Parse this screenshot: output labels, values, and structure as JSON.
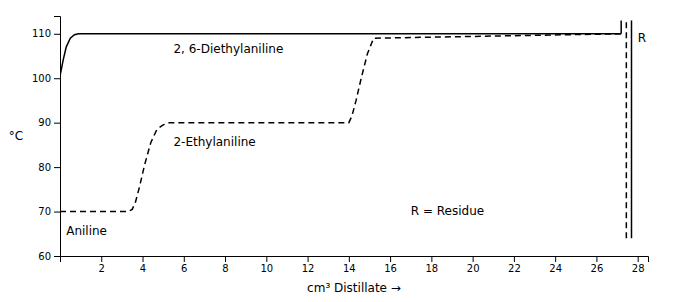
{
  "chart_data": {
    "type": "line",
    "xlabel": "cm³ Distillate →",
    "ylabel": "°C",
    "xlim": [
      0,
      28.5
    ],
    "ylim": [
      60,
      114
    ],
    "xticks": [
      2,
      4,
      6,
      8,
      10,
      12,
      14,
      16,
      18,
      20,
      22,
      24,
      26,
      28
    ],
    "yticks": [
      60,
      70,
      80,
      90,
      100,
      110
    ],
    "grid": false,
    "series": [
      {
        "x": [
          0.0,
          0.15,
          0.3,
          0.5,
          0.7,
          0.9,
          1.1,
          27.2
        ],
        "values": [
          100.5,
          104,
          107,
          109,
          109.8,
          110,
          110,
          110
        ],
        "color": "#000000",
        "line_style": "solid"
      },
      {
        "x": [
          0.0,
          3.3,
          3.5,
          3.65,
          3.85,
          4.1,
          4.4,
          4.7,
          5.0,
          5.3,
          14.0,
          14.15,
          14.35,
          14.6,
          14.9,
          15.2,
          27.2
        ],
        "values": [
          70,
          70,
          70.5,
          72,
          75.5,
          80.5,
          85.5,
          88.5,
          89.5,
          90,
          90,
          91.5,
          95,
          100,
          105.5,
          109,
          110
        ],
        "color": "#000000",
        "line_style": "dashed"
      },
      {
        "x": [
          27.2,
          27.2
        ],
        "values": [
          110,
          113
        ],
        "color": "#000000",
        "line_style": "solid"
      },
      {
        "x": [
          27.45,
          27.45
        ],
        "values": [
          64,
          113
        ],
        "color": "#000000",
        "line_style": "dashed"
      },
      {
        "x": [
          27.7,
          27.7
        ],
        "values": [
          64,
          113
        ],
        "color": "#000000",
        "line_style": "solid"
      }
    ],
    "annotations": [
      {
        "text": "2, 6-Diethylaniline",
        "x": 5.5,
        "y": 106.5
      },
      {
        "text": "2-Ethylaniline",
        "x": 5.5,
        "y": 85.5
      },
      {
        "text": "Aniline",
        "x": 0.3,
        "y": 65.5
      },
      {
        "text": "R = Residue",
        "x": 17.0,
        "y": 70.0
      },
      {
        "text": "R",
        "x": 28.0,
        "y": 109
      }
    ]
  }
}
